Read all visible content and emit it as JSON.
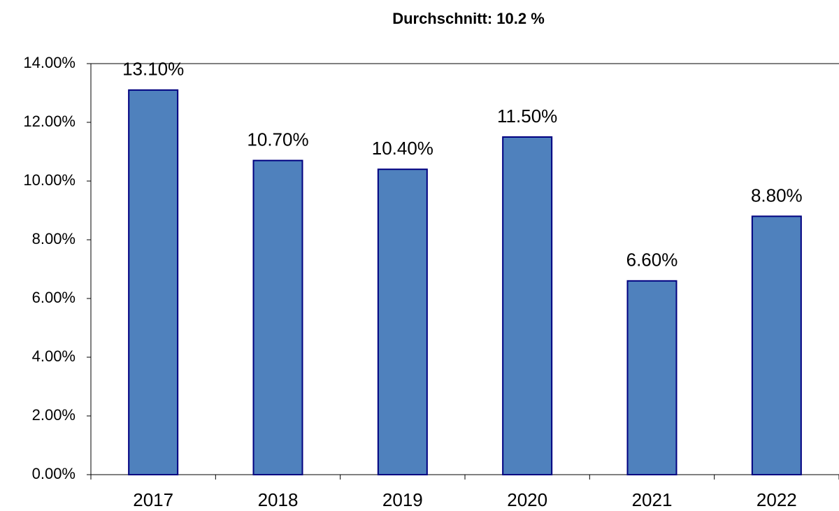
{
  "chart_data": {
    "type": "bar",
    "title": "Durchschnitt: 10.2 %",
    "categories": [
      "2017",
      "2018",
      "2019",
      "2020",
      "2021",
      "2022"
    ],
    "values": [
      13.1,
      10.7,
      10.4,
      11.5,
      6.6,
      8.8
    ],
    "value_labels": [
      "13.10%",
      "10.70%",
      "10.40%",
      "11.50%",
      "6.60%",
      "8.80%"
    ],
    "color": "#4f81bd",
    "edge_color": "#000080",
    "ylim": [
      0,
      14
    ],
    "yticks": [
      {
        "value": 0,
        "label": "0.00%"
      },
      {
        "value": 2,
        "label": "2.00%"
      },
      {
        "value": 4,
        "label": "4.00%"
      },
      {
        "value": 6,
        "label": "6.00%"
      },
      {
        "value": 8,
        "label": "8.00%"
      },
      {
        "value": 10,
        "label": "10.00%"
      },
      {
        "value": 12,
        "label": "12.00%"
      },
      {
        "value": 14,
        "label": "14.00%"
      }
    ],
    "grid": false
  }
}
